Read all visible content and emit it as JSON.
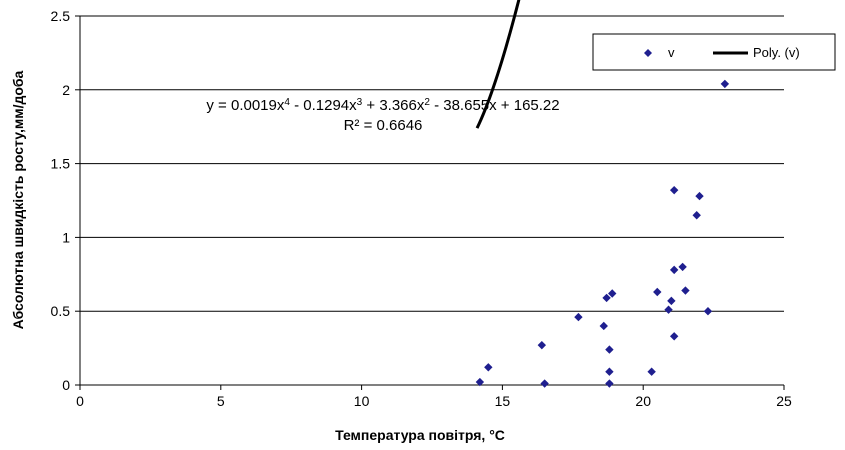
{
  "chart_data": {
    "type": "scatter",
    "xlabel": "Температура повітря, °С",
    "ylabel": "Абсолютна швидкість росту,мм/доба",
    "xlim": [
      0,
      25
    ],
    "ylim": [
      0,
      2.5
    ],
    "xticks": [
      "0",
      "5",
      "10",
      "15",
      "20",
      "25"
    ],
    "yticks": [
      "0",
      "0.5",
      "1",
      "1.5",
      "2",
      "2.5"
    ],
    "grid": "horizontal",
    "legend_position": "top-right",
    "colors": {
      "points": "#1f1f8f",
      "trendline": "#000000"
    },
    "series": [
      {
        "name": "v",
        "kind": "points",
        "x": [
          14.2,
          14.5,
          16.4,
          16.5,
          17.7,
          18.6,
          18.7,
          18.8,
          18.8,
          18.8,
          18.9,
          20.3,
          20.5,
          20.9,
          21.0,
          21.1,
          21.1,
          21.1,
          21.4,
          21.5,
          21.9,
          22.0,
          22.3,
          22.9
        ],
        "y": [
          0.02,
          0.12,
          0.27,
          0.01,
          0.46,
          0.4,
          0.59,
          0.24,
          0.09,
          0.01,
          0.62,
          0.09,
          0.63,
          0.51,
          0.57,
          1.32,
          0.78,
          0.33,
          0.8,
          0.64,
          1.15,
          1.28,
          0.5,
          2.04
        ]
      },
      {
        "name": "Poly. (v)",
        "kind": "trendline",
        "fit": "polynomial",
        "order": 4,
        "coefficients": [
          0.0019,
          -0.1294,
          3.366,
          -38.655,
          165.22
        ],
        "x_range": [
          14.1,
          22.9
        ]
      }
    ],
    "annotation": {
      "parts": [
        "y = 0.0019x",
        "4",
        " - 0.1294x",
        "3",
        " + 3.366x",
        "2",
        " - 38.655x + 165.22"
      ],
      "r2": "R² = 0.6646"
    }
  }
}
